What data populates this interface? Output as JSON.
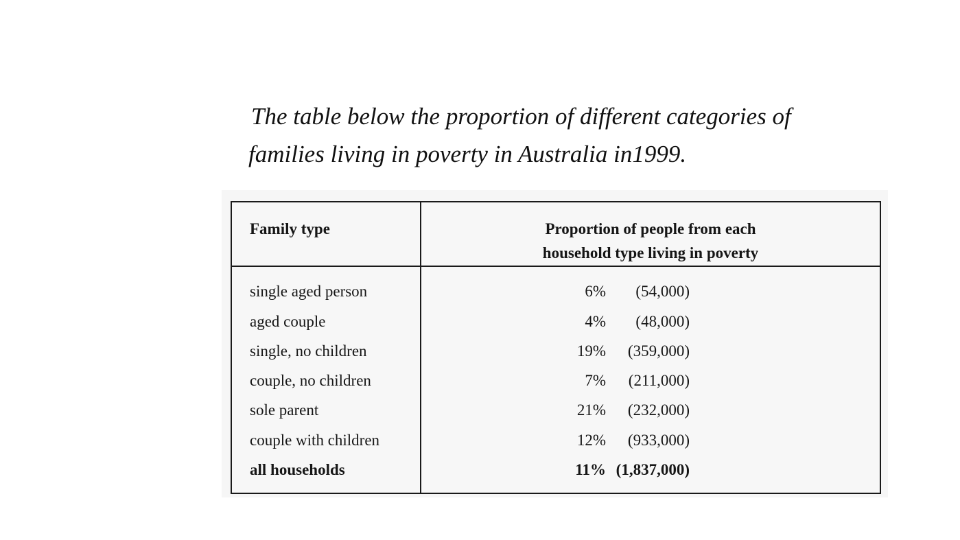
{
  "intro": {
    "line1": "The table below the proportion of different categories of",
    "line2": "families living in poverty in Australia in1999."
  },
  "table": {
    "header_family": "Family type",
    "header_prop_line1": "Proportion of people from each",
    "header_prop_line2": "household type living in poverty",
    "rows": [
      {
        "type": "single aged person",
        "pct": "6%",
        "count": "(54,000)"
      },
      {
        "type": "aged couple",
        "pct": "4%",
        "count": "(48,000)"
      },
      {
        "type": "single, no children",
        "pct": "19%",
        "count": "(359,000)"
      },
      {
        "type": "couple, no children",
        "pct": "7%",
        "count": "(211,000)"
      },
      {
        "type": "sole parent",
        "pct": "21%",
        "count": "(232,000)"
      },
      {
        "type": "couple with children",
        "pct": "12%",
        "count": "(933,000)"
      }
    ],
    "total": {
      "type": "all households",
      "pct": "11%",
      "count": "(1,837,000)"
    }
  }
}
